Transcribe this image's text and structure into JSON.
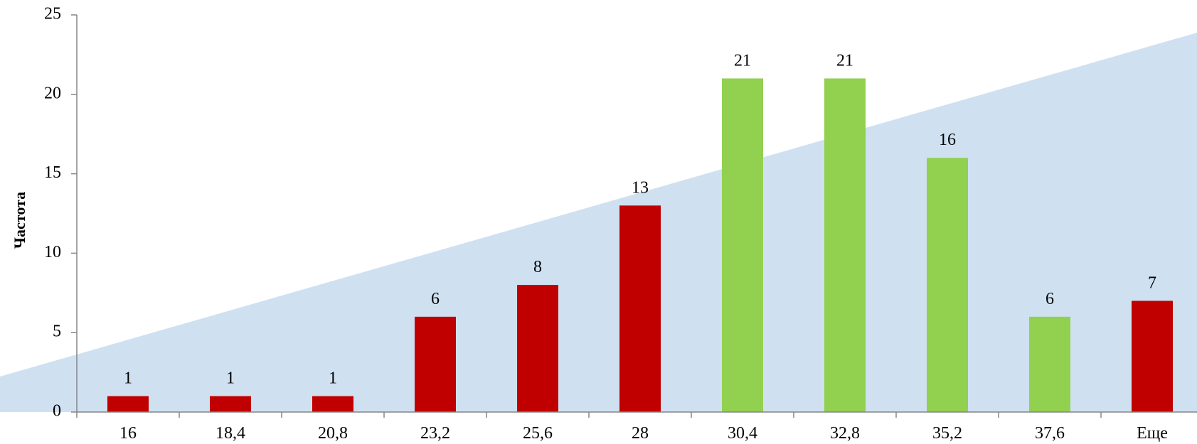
{
  "chart_data": {
    "type": "bar",
    "categories": [
      "16",
      "18,4",
      "20,8",
      "23,2",
      "25,6",
      "28",
      "30,4",
      "32,8",
      "35,2",
      "37,6",
      "Еще"
    ],
    "values": [
      1,
      1,
      1,
      6,
      8,
      13,
      21,
      21,
      16,
      6,
      7
    ],
    "bar_colors": [
      "#c00000",
      "#c00000",
      "#c00000",
      "#c00000",
      "#c00000",
      "#c00000",
      "#92d050",
      "#92d050",
      "#92d050",
      "#92d050",
      "#c00000"
    ],
    "ylabel": "Частота",
    "xlabel": "",
    "ylim": [
      0,
      25
    ],
    "yticks": [
      "0",
      "5",
      "10",
      "15",
      "20",
      "25"
    ],
    "grid": false,
    "legend": "none",
    "data_labels": true,
    "background_wedge_color": "#cfe0f1"
  }
}
